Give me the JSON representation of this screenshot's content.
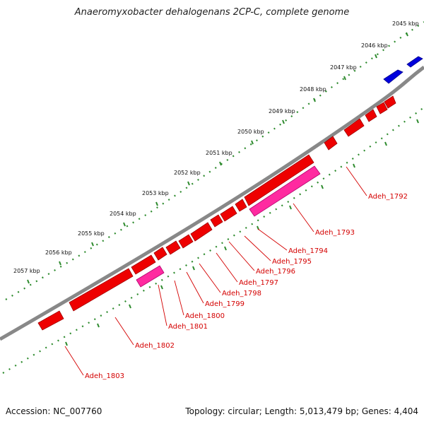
{
  "title": "Anaeromyxobacter dehalogenans 2CP-C, complete genome",
  "footer": {
    "accession": "Accession: NC_007760",
    "stats": "Topology: circular; Length: 5,013,479 bp; Genes: 4,404"
  },
  "colors": {
    "backbone": "#888888",
    "tick": "#2e8b2e",
    "gene_red": "#ee0000",
    "gene_pink": "#ff2aa0",
    "gene_blue": "#0000dd",
    "label": "#d40000"
  },
  "scale": {
    "unit": "kbp",
    "labels": [
      "2045 kbp",
      "2046 kbp",
      "2047 kbp",
      "2048 kbp",
      "2049 kbp",
      "2050 kbp",
      "2051 kbp",
      "2052 kbp",
      "2053 kbp",
      "2054 kbp",
      "2055 kbp",
      "2056 kbp",
      "2057 kbp"
    ]
  },
  "genes": [
    {
      "label": "Adeh_1792",
      "color": "red"
    },
    {
      "label": "Adeh_1793",
      "color": "pink"
    },
    {
      "label": "Adeh_1794",
      "color": "red"
    },
    {
      "label": "Adeh_1795",
      "color": "red"
    },
    {
      "label": "Adeh_1796",
      "color": "red"
    },
    {
      "label": "Adeh_1797",
      "color": "red"
    },
    {
      "label": "Adeh_1798",
      "color": "red"
    },
    {
      "label": "Adeh_1799",
      "color": "red"
    },
    {
      "label": "Adeh_1800",
      "color": "red"
    },
    {
      "label": "Adeh_1801",
      "color": "pink"
    },
    {
      "label": "Adeh_1802",
      "color": "red"
    },
    {
      "label": "Adeh_1803",
      "color": "red"
    }
  ]
}
